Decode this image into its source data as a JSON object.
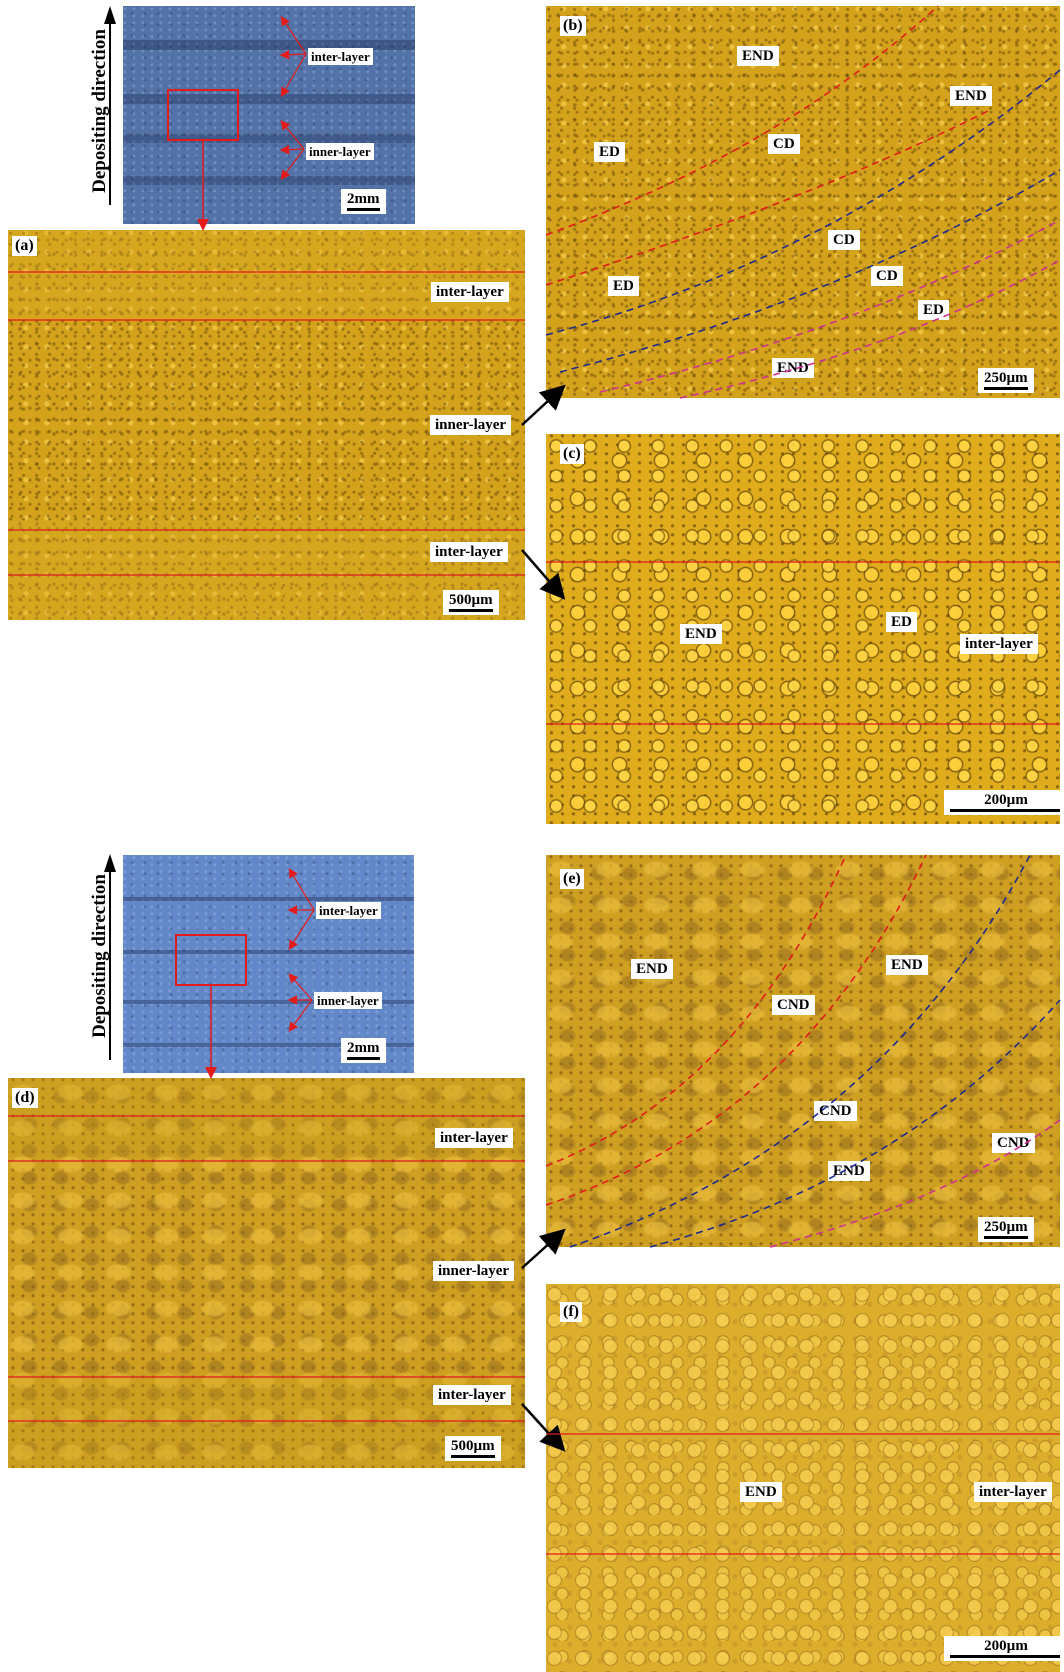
{
  "top": {
    "direction_title": "Depositing direction",
    "macro": {
      "inter_label": "inter-layer",
      "inner_label": "inner-layer",
      "scale": "2mm"
    },
    "a": {
      "tag": "(a)",
      "inter1": "inter-layer",
      "inner": "inner-layer",
      "inter2": "inter-layer",
      "scale": "500µm"
    },
    "b": {
      "tag": "(b)",
      "labels": [
        "END",
        "END",
        "ED",
        "CD",
        "CD",
        "ED",
        "CD",
        "ED",
        "END"
      ],
      "scale": "250µm"
    },
    "c": {
      "tag": "(c)",
      "labels": [
        "END",
        "ED",
        "inter-layer"
      ],
      "scale": "200µm"
    }
  },
  "bottom": {
    "direction_title": "Depositing direction",
    "macro": {
      "inter_label": "inter-layer",
      "inner_label": "inner-layer",
      "scale": "2mm"
    },
    "d": {
      "tag": "(d)",
      "inter1": "inter-layer",
      "inner": "inner-layer",
      "inter2": "inter-layer",
      "scale": "500µm"
    },
    "e": {
      "tag": "(e)",
      "labels": [
        "END",
        "END",
        "CND",
        "CND",
        "CND",
        "END"
      ],
      "scale": "250µm"
    },
    "f": {
      "tag": "(f)",
      "labels": [
        "END",
        "inter-layer"
      ],
      "scale": "200µm"
    }
  },
  "colors": {
    "marker_red": "#e31b1b",
    "line_blue": "#1c2a8c",
    "line_magenta": "#d0308f"
  }
}
